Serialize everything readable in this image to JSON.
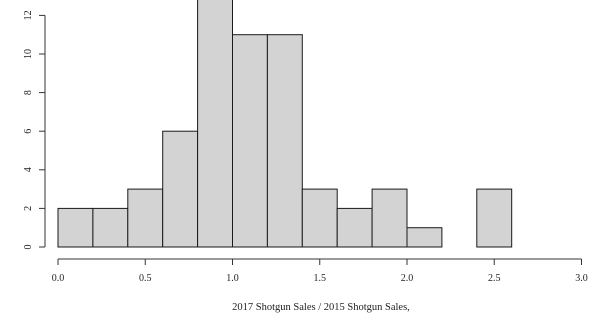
{
  "chart_data": {
    "type": "bar",
    "subtype": "histogram",
    "xlabel": "2017 Shotgun Sales / 2015 Shotgun Sales,",
    "ylabel": "",
    "bins": [
      {
        "from": 0.0,
        "to": 0.2,
        "count": 2
      },
      {
        "from": 0.2,
        "to": 0.4,
        "count": 2
      },
      {
        "from": 0.4,
        "to": 0.6,
        "count": 3
      },
      {
        "from": 0.6,
        "to": 0.8,
        "count": 6
      },
      {
        "from": 0.8,
        "to": 1.0,
        "count": 13
      },
      {
        "from": 1.0,
        "to": 1.2,
        "count": 11
      },
      {
        "from": 1.2,
        "to": 1.4,
        "count": 11
      },
      {
        "from": 1.4,
        "to": 1.6,
        "count": 3
      },
      {
        "from": 1.6,
        "to": 1.8,
        "count": 2
      },
      {
        "from": 1.8,
        "to": 2.0,
        "count": 3
      },
      {
        "from": 2.0,
        "to": 2.2,
        "count": 1
      },
      {
        "from": 2.2,
        "to": 2.4,
        "count": 0
      },
      {
        "from": 2.4,
        "to": 2.6,
        "count": 3
      }
    ],
    "xlim": [
      0,
      3.0
    ],
    "ylim": [
      0,
      13
    ],
    "x_ticks": [
      {
        "value": 0.0,
        "label": "0.0"
      },
      {
        "value": 0.5,
        "label": "0.5"
      },
      {
        "value": 1.0,
        "label": "1.0"
      },
      {
        "value": 1.5,
        "label": "1.5"
      },
      {
        "value": 2.0,
        "label": "2.0"
      },
      {
        "value": 2.5,
        "label": "2.5"
      },
      {
        "value": 3.0,
        "label": "3.0"
      }
    ],
    "y_ticks": [
      {
        "value": 0,
        "label": "0"
      },
      {
        "value": 2,
        "label": "2"
      },
      {
        "value": 4,
        "label": "4"
      },
      {
        "value": 6,
        "label": "6"
      },
      {
        "value": 8,
        "label": "8"
      },
      {
        "value": 10,
        "label": "10"
      },
      {
        "value": 12,
        "label": "12"
      }
    ],
    "grid": false,
    "colors": {
      "bar_fill": "#d3d3d3",
      "bar_stroke": "#1a1a1a"
    }
  }
}
